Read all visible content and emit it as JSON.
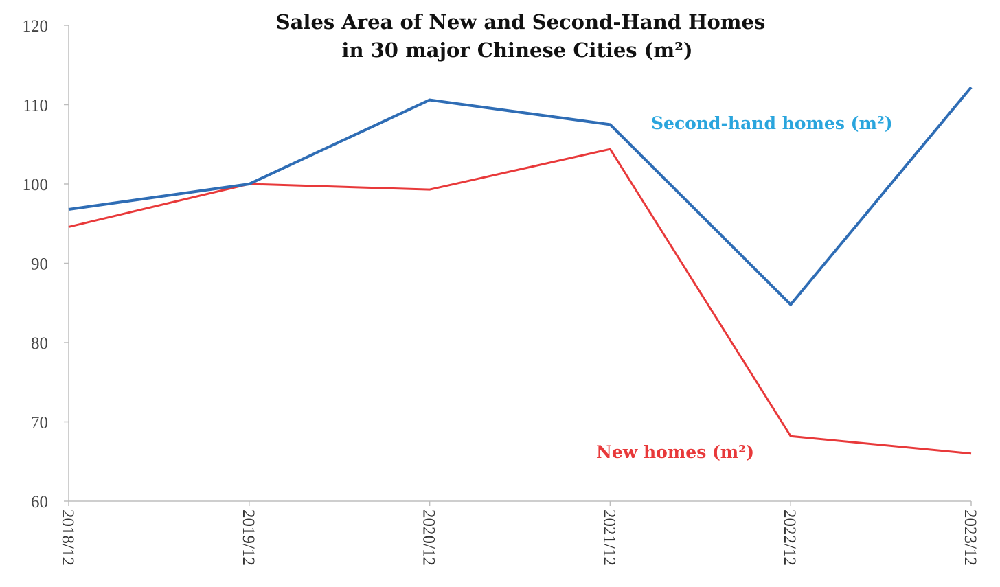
{
  "chart_data": {
    "type": "line",
    "title": "Sales Area of New and Second-Hand Homes",
    "subtitle": "in 30 major Chinese Cities (m²)",
    "xlabel": "",
    "ylabel": "",
    "categories": [
      "2018/12",
      "2019/12",
      "2020/12",
      "2021/12",
      "2022/12",
      "2023/12"
    ],
    "ylim": [
      60,
      120
    ],
    "yticks": [
      60,
      70,
      80,
      90,
      100,
      110,
      120
    ],
    "grid": false,
    "legend": "inline",
    "series": [
      {
        "name": "Second-hand homes (m²)",
        "color": "#2f6db5",
        "label_color": "#2aa5dd",
        "values": [
          96.8,
          100,
          110.6,
          107.5,
          84.8,
          112.2
        ]
      },
      {
        "name": "New homes  (m²)",
        "color": "#e8393a",
        "label_color": "#e8393a",
        "values": [
          94.6,
          100,
          99.3,
          104.4,
          68.2,
          66.0
        ]
      }
    ]
  }
}
